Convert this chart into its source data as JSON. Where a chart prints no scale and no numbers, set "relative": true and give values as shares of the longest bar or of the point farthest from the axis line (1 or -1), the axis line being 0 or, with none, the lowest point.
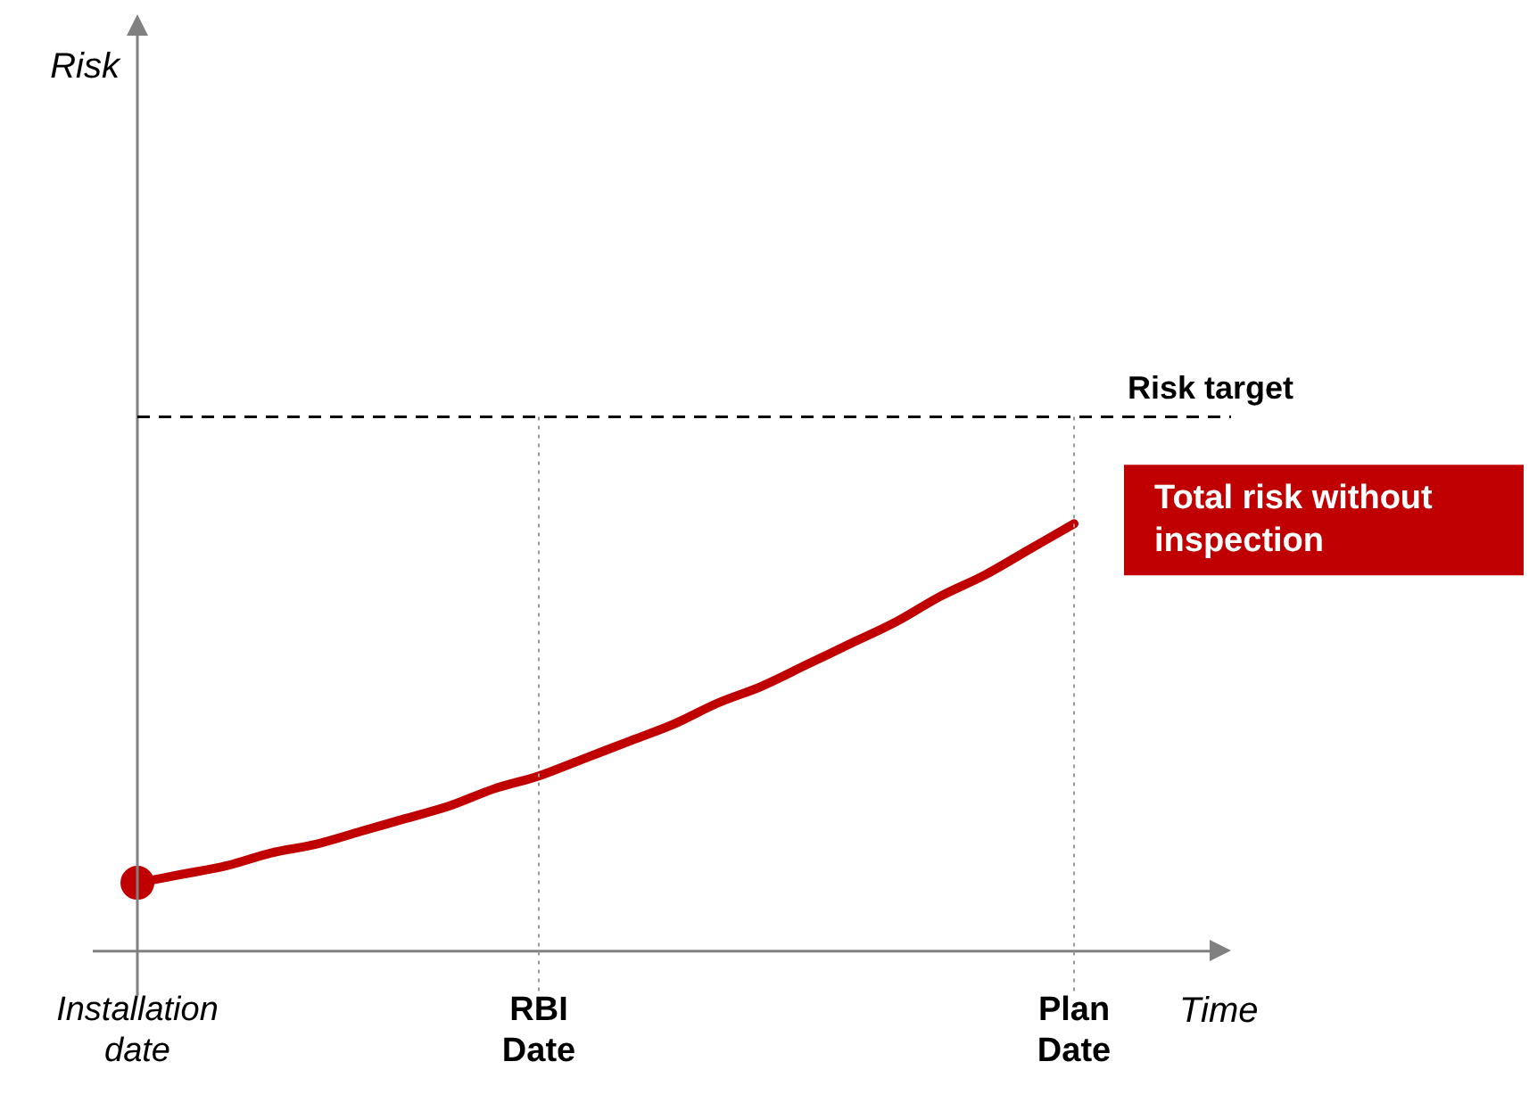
{
  "chart_data": {
    "type": "line",
    "relative": true,
    "xlabel": "Time",
    "annotations": [
      "Risk"
    ],
    "categories": [
      "Installation\ndate",
      null,
      null,
      null,
      null,
      null,
      null,
      null,
      null,
      "RBI\nDate",
      null,
      null,
      null,
      null,
      null,
      null,
      null,
      null,
      null,
      null,
      null,
      "Plan\nDate"
    ],
    "series": [
      {
        "name": "Total risk without inspection",
        "color": "#c00000",
        "values": [
          0.16,
          0.18,
          0.2,
          0.23,
          0.25,
          0.28,
          0.31,
          0.34,
          0.38,
          0.41,
          0.45,
          0.49,
          0.53,
          0.58,
          0.62,
          0.67,
          0.72,
          0.77,
          0.83,
          0.88,
          0.94,
          1
        ]
      },
      {
        "type": "scatter",
        "color": "#c00000",
        "marker": "circle",
        "values": [
          0.16,
          null,
          null,
          null,
          null,
          null,
          null,
          null,
          null,
          null,
          null,
          null,
          null,
          null,
          null,
          null,
          null,
          null,
          null,
          null,
          null,
          null
        ]
      }
    ],
    "ref_lines": [
      {
        "axis": "y",
        "value": 1.25,
        "label": "Risk target",
        "line_style": "dashed",
        "color": "#000000"
      },
      {
        "axis": "x",
        "value": "RBI\nDate",
        "color": "#999999",
        "line_style": "dotted"
      },
      {
        "axis": "x",
        "value": "Plan\nDate",
        "color": "#999999",
        "line_style": "dotted"
      }
    ],
    "grid": false,
    "legend": false,
    "marker": "none",
    "line_style": "solid"
  }
}
